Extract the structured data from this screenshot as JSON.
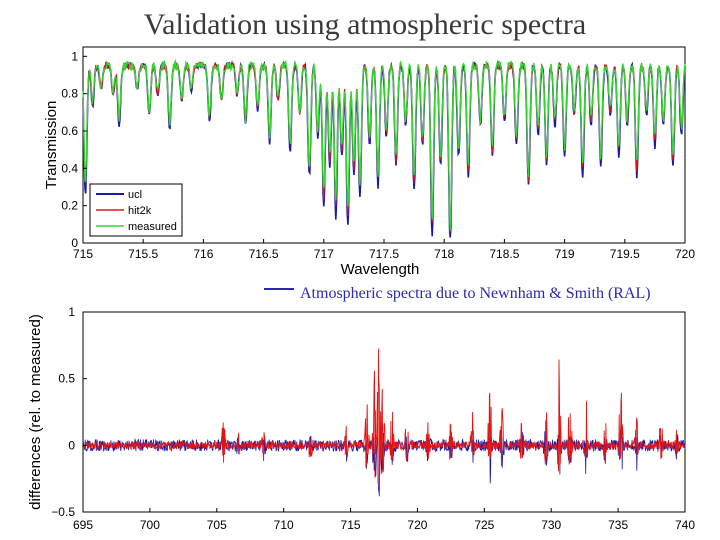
{
  "title": "Validation using atmospheric spectra",
  "caption": "Atmospheric spectra due to Newnham & Smith (RAL)",
  "colors": {
    "ucl": "#1a1aa6",
    "hit2k": "#e01818",
    "measured": "#33d633",
    "diff1": "#e41414",
    "diff2": "#1a1aa6",
    "caption": "#2a2ab0"
  },
  "chart_data": [
    {
      "type": "line",
      "xlabel": "Wavelength",
      "ylabel": "Transmission",
      "xlim": [
        715,
        720
      ],
      "ylim": [
        0,
        1.05
      ],
      "xticks": [
        "715",
        "715.5",
        "716",
        "716.5",
        "717",
        "717.5",
        "718",
        "718.5",
        "719",
        "719.5",
        "720"
      ],
      "yticks": [
        "0",
        "0.2",
        "0.4",
        "0.6",
        "0.8",
        "1"
      ],
      "legend_position": "bottom-left",
      "baseline": 0.95,
      "series": [
        {
          "name": "ucl",
          "color": "#1a1aa6"
        },
        {
          "name": "hit2k",
          "color": "#e01818"
        },
        {
          "name": "measured",
          "color": "#33d633"
        }
      ],
      "absorption_lines": [
        [
          715.02,
          0.65
        ],
        [
          715.08,
          0.2
        ],
        [
          715.15,
          0.12
        ],
        [
          715.25,
          0.15
        ],
        [
          715.3,
          0.3
        ],
        [
          715.45,
          0.12
        ],
        [
          715.55,
          0.25
        ],
        [
          715.62,
          0.15
        ],
        [
          715.72,
          0.32
        ],
        [
          715.82,
          0.18
        ],
        [
          715.9,
          0.12
        ],
        [
          716.05,
          0.28
        ],
        [
          716.15,
          0.18
        ],
        [
          716.28,
          0.15
        ],
        [
          716.35,
          0.3
        ],
        [
          716.45,
          0.22
        ],
        [
          716.55,
          0.38
        ],
        [
          716.62,
          0.18
        ],
        [
          716.72,
          0.42
        ],
        [
          716.8,
          0.25
        ],
        [
          716.88,
          0.55
        ],
        [
          716.95,
          0.35
        ],
        [
          717.0,
          0.7
        ],
        [
          717.05,
          0.5
        ],
        [
          717.1,
          0.75
        ],
        [
          717.15,
          0.45
        ],
        [
          717.2,
          0.8
        ],
        [
          717.25,
          0.55
        ],
        [
          717.3,
          0.65
        ],
        [
          717.38,
          0.4
        ],
        [
          717.45,
          0.6
        ],
        [
          717.52,
          0.35
        ],
        [
          717.6,
          0.5
        ],
        [
          717.68,
          0.3
        ],
        [
          717.75,
          0.62
        ],
        [
          717.82,
          0.4
        ],
        [
          717.9,
          0.85
        ],
        [
          717.97,
          0.5
        ],
        [
          718.05,
          0.9
        ],
        [
          718.12,
          0.45
        ],
        [
          718.2,
          0.55
        ],
        [
          718.3,
          0.3
        ],
        [
          718.4,
          0.45
        ],
        [
          718.5,
          0.28
        ],
        [
          718.6,
          0.4
        ],
        [
          718.7,
          0.6
        ],
        [
          718.78,
          0.35
        ],
        [
          718.85,
          0.5
        ],
        [
          718.92,
          0.3
        ],
        [
          719.0,
          0.45
        ],
        [
          719.08,
          0.25
        ],
        [
          719.15,
          0.55
        ],
        [
          719.22,
          0.3
        ],
        [
          719.3,
          0.5
        ],
        [
          719.38,
          0.25
        ],
        [
          719.45,
          0.45
        ],
        [
          719.52,
          0.3
        ],
        [
          719.6,
          0.55
        ],
        [
          719.68,
          0.25
        ],
        [
          719.75,
          0.4
        ],
        [
          719.82,
          0.3
        ],
        [
          719.9,
          0.5
        ],
        [
          719.97,
          0.35
        ]
      ]
    },
    {
      "type": "line",
      "xlabel": "",
      "ylabel": "differences (rel. to measured)",
      "xlim": [
        695,
        740
      ],
      "ylim": [
        -0.5,
        1
      ],
      "xticks": [
        "695",
        "700",
        "705",
        "710",
        "715",
        "720",
        "725",
        "730",
        "735",
        "740"
      ],
      "yticks": [
        "−0.5",
        "0",
        "0.5",
        "1"
      ],
      "series": [
        {
          "color": "#e41414"
        },
        {
          "color": "#1a1aa6"
        }
      ],
      "noise_amplitude": 0.03,
      "spikes": [
        [
          705.5,
          0.2,
          -0.15
        ],
        [
          706.6,
          0.1,
          -0.1
        ],
        [
          708.5,
          0.15,
          -0.12
        ],
        [
          712.0,
          0.12,
          -0.1
        ],
        [
          714.7,
          0.18,
          -0.12
        ],
        [
          716.2,
          0.35,
          -0.2
        ],
        [
          716.8,
          0.6,
          -0.3
        ],
        [
          717.1,
          0.8,
          -0.35
        ],
        [
          717.4,
          0.55,
          -0.25
        ],
        [
          718.1,
          0.32,
          -0.15
        ],
        [
          719.2,
          0.28,
          -0.12
        ],
        [
          720.8,
          0.22,
          -0.1
        ],
        [
          722.5,
          0.18,
          -0.12
        ],
        [
          724.1,
          0.25,
          -0.15
        ],
        [
          725.4,
          0.55,
          -0.2
        ],
        [
          726.3,
          0.35,
          -0.15
        ],
        [
          727.8,
          0.28,
          -0.18
        ],
        [
          729.6,
          0.45,
          -0.2
        ],
        [
          730.6,
          0.72,
          -0.25
        ],
        [
          731.4,
          0.5,
          -0.2
        ],
        [
          732.6,
          0.35,
          -0.12
        ],
        [
          734.0,
          0.3,
          -0.15
        ],
        [
          735.2,
          0.62,
          -0.2
        ],
        [
          736.4,
          0.3,
          -0.12
        ],
        [
          738.2,
          0.25,
          -0.12
        ],
        [
          739.4,
          0.18,
          -0.1
        ]
      ]
    }
  ]
}
